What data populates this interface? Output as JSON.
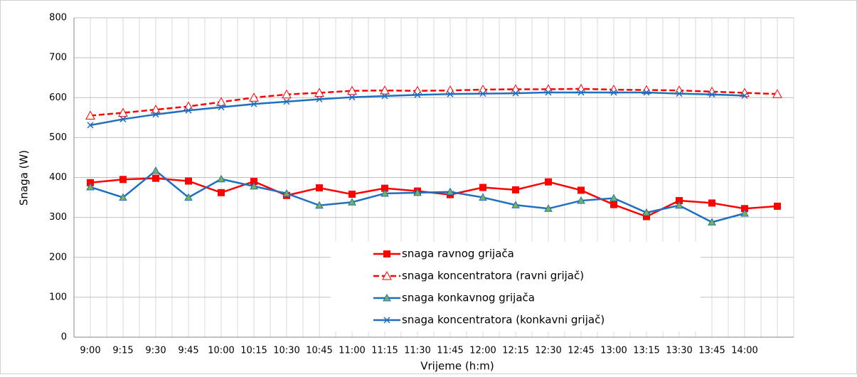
{
  "chart_data": {
    "type": "line",
    "xlabel": "Vrijeme (h:m)",
    "ylabel": "Snaga (W)",
    "categories": [
      "9:00",
      "9:15",
      "9:30",
      "9:45",
      "10:00",
      "10:15",
      "10:30",
      "10:45",
      "11:00",
      "11:15",
      "11:30",
      "11:45",
      "12:00",
      "12:15",
      "12:30",
      "12:45",
      "13:00",
      "13:15",
      "13:30",
      "13:45",
      "14:00",
      null
    ],
    "ylim": [
      0,
      800
    ],
    "yticks": [
      0,
      100,
      200,
      300,
      400,
      500,
      600,
      700,
      800
    ],
    "grid": true,
    "legend": "bottom",
    "series": [
      {
        "name": "snaga ravnog grijača",
        "color": "#ff0000",
        "marker": "square",
        "dash": false,
        "values": [
          387,
          395,
          398,
          391,
          362,
          390,
          355,
          374,
          358,
          373,
          366,
          357,
          375,
          369,
          389,
          368,
          332,
          302,
          342,
          336,
          322,
          328
        ]
      },
      {
        "name": "snaga koncentratora (ravni grijač)",
        "color": "#ff0000",
        "marker": "open-triangle",
        "dash": true,
        "values": [
          555,
          562,
          570,
          578,
          589,
          600,
          608,
          612,
          617,
          618,
          617,
          618,
          620,
          621,
          621,
          622,
          620,
          619,
          618,
          615,
          612,
          609
        ]
      },
      {
        "name": "snaga konkavnog grijača",
        "color": "#1f6fbf",
        "marker": "filled-triangle",
        "dash": false,
        "values": [
          376,
          350,
          417,
          350,
          396,
          378,
          360,
          330,
          338,
          360,
          362,
          364,
          350,
          331,
          322,
          342,
          348,
          312,
          330,
          288,
          310,
          null
        ]
      },
      {
        "name": "snaga koncentratora (konkavni grijač)",
        "color": "#1f6fbf",
        "marker": "x",
        "dash": false,
        "values": [
          531,
          546,
          558,
          568,
          576,
          584,
          590,
          596,
          601,
          604,
          607,
          609,
          610,
          611,
          613,
          613,
          613,
          613,
          610,
          608,
          605,
          null
        ]
      }
    ]
  }
}
